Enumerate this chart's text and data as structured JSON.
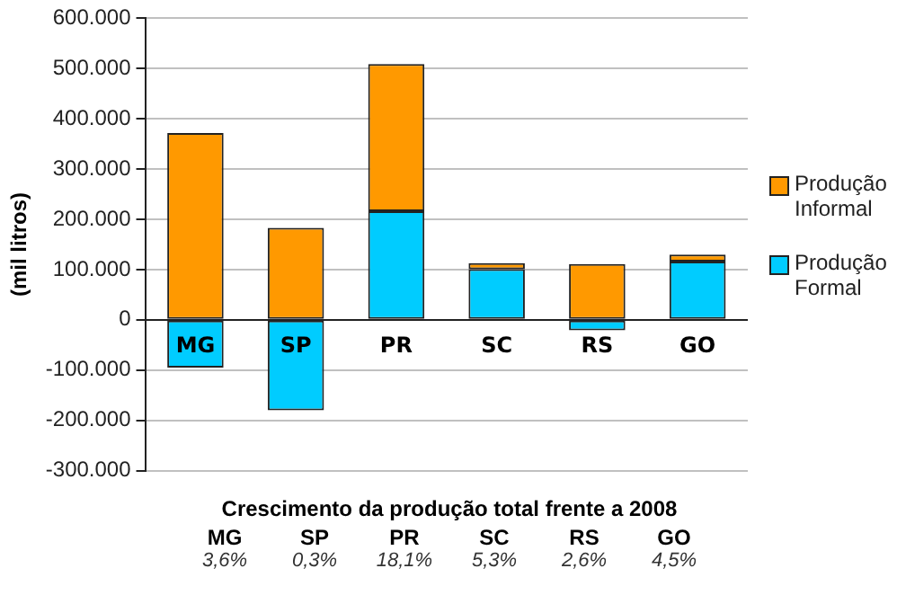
{
  "chart_data": {
    "type": "bar",
    "stacked": true,
    "ylabel": "(mil litros)",
    "categories": [
      "MG",
      "SP",
      "PR",
      "SC",
      "RS",
      "GO"
    ],
    "series": [
      {
        "name": "Produção Formal",
        "color": "#00ccff",
        "values": [
          -95000,
          -180000,
          216000,
          101000,
          -21000,
          116000
        ]
      },
      {
        "name": "Produção Informal",
        "color": "#ff9900",
        "values": [
          372000,
          183000,
          293000,
          12000,
          111000,
          14000
        ]
      }
    ],
    "ylim": [
      -300000,
      600000
    ],
    "yticks": [
      {
        "value": -300000,
        "label": "-300.000"
      },
      {
        "value": -200000,
        "label": "-200.000"
      },
      {
        "value": -100000,
        "label": "-100.000"
      },
      0,
      {
        "value": 100000,
        "label": "100.000"
      },
      {
        "value": 200000,
        "label": "200.000"
      },
      {
        "value": 300000,
        "label": "300.000"
      },
      {
        "value": 400000,
        "label": "400.000"
      },
      {
        "value": 500000,
        "label": "500.000"
      },
      {
        "value": 600000,
        "label": "600.000"
      }
    ],
    "grid": "y",
    "legend": "right",
    "annotations": [
      "Crescimento da produção total frente a 2008",
      "3,6%",
      "0,3%",
      "18,1%",
      "5,3%",
      "2,6%",
      "4,5%"
    ]
  }
}
